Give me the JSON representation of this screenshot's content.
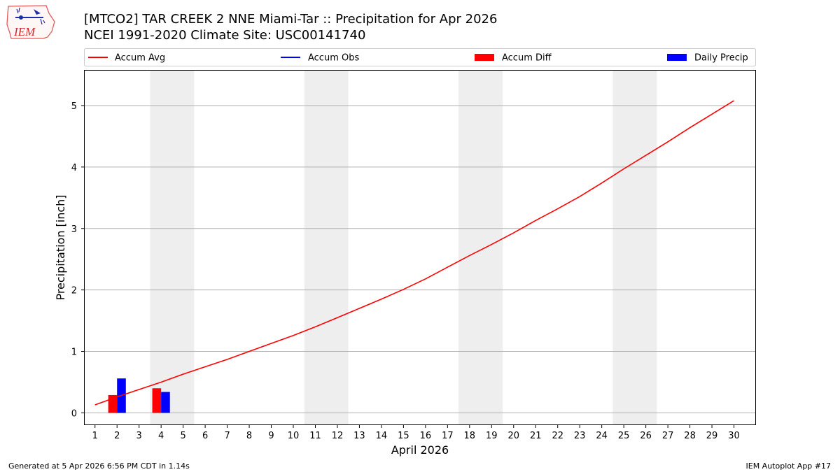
{
  "header": {
    "title_line1": "[MTCO2] TAR CREEK 2 NNE Miami-Tar :: Precipitation for Apr 2026",
    "title_line2": "NCEI 1991-2020 Climate Site: USC00141740",
    "logo_text": "IEM"
  },
  "footer": {
    "left": "Generated at 5 Apr 2026 6:56 PM CDT in 1.14s",
    "right": "IEM Autoplot App #17"
  },
  "colors": {
    "accum_avg": "#ff0000",
    "accum_obs": "#0000ff",
    "accum_diff": "#ff0000",
    "daily_precip": "#0000ff",
    "weekend_shade": "#eeeeee",
    "grid": "#b0b0b0"
  },
  "chart_data": {
    "type": "bar",
    "xlabel": "April 2026",
    "ylabel": "Precipitation [inch]",
    "xlim": [
      0.5,
      31
    ],
    "ylim": [
      -0.2,
      5.58
    ],
    "x_ticks": [
      1,
      2,
      3,
      4,
      5,
      6,
      7,
      8,
      9,
      10,
      11,
      12,
      13,
      14,
      15,
      16,
      17,
      18,
      19,
      20,
      21,
      22,
      23,
      24,
      25,
      26,
      27,
      28,
      29,
      30
    ],
    "y_ticks": [
      0,
      1,
      2,
      3,
      4,
      5
    ],
    "grid": "horizontal",
    "legend_placement": "top",
    "legend": [
      "Accum Avg",
      "Accum Obs",
      "Accum Diff",
      "Daily Precip"
    ],
    "weekend_spans": [
      [
        4,
        5
      ],
      [
        11,
        12
      ],
      [
        18,
        19
      ],
      [
        25,
        26
      ]
    ],
    "series": [
      {
        "name": "Accum Avg",
        "type": "line",
        "x": [
          1,
          2,
          3,
          4,
          5,
          6,
          7,
          8,
          9,
          10,
          11,
          12,
          13,
          14,
          15,
          16,
          17,
          18,
          19,
          20,
          21,
          22,
          23,
          24,
          25,
          26,
          27,
          28,
          29,
          30
        ],
        "values": [
          0.13,
          0.26,
          0.38,
          0.5,
          0.63,
          0.75,
          0.87,
          1.0,
          1.13,
          1.26,
          1.4,
          1.55,
          1.7,
          1.85,
          2.01,
          2.18,
          2.37,
          2.56,
          2.74,
          2.93,
          3.13,
          3.32,
          3.52,
          3.74,
          3.97,
          4.19,
          4.41,
          4.64,
          4.86,
          5.08
        ]
      },
      {
        "name": "Accum Obs",
        "type": "line",
        "x": [],
        "values": []
      },
      {
        "name": "Accum Diff",
        "type": "bar",
        "x": [
          2,
          4
        ],
        "values": [
          0.29,
          0.4
        ]
      },
      {
        "name": "Daily Precip",
        "type": "bar",
        "x": [
          2,
          4
        ],
        "values": [
          0.56,
          0.34
        ]
      }
    ]
  }
}
